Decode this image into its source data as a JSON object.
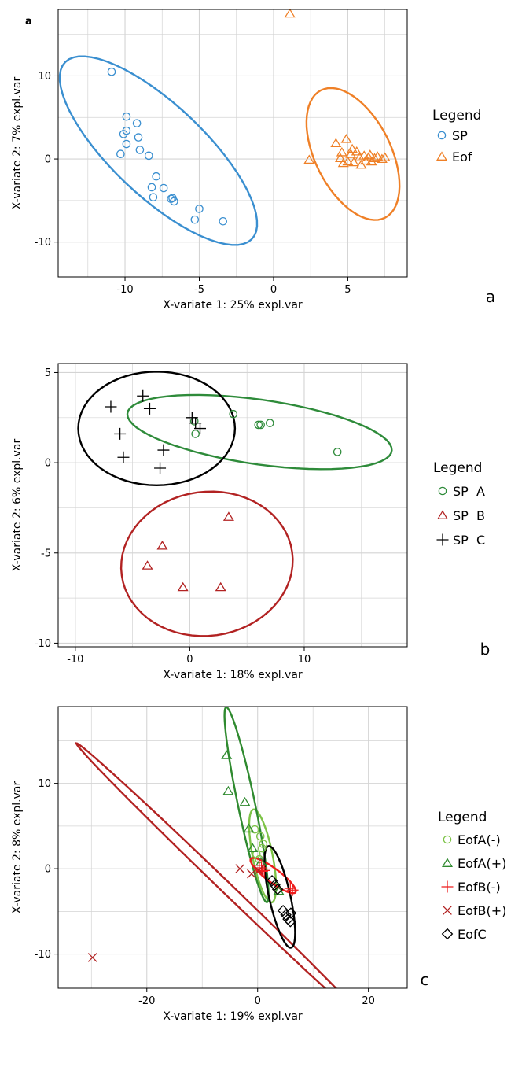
{
  "colors": {
    "sp": "#3a8fd0",
    "eof": "#ef8027",
    "spA": "#2e8b3a",
    "spB": "#b22222",
    "spC": "#000000",
    "eofA_minus": "#7dc347",
    "eofA_plus": "#2f8a2f",
    "eofB_minus": "#ee1c1c",
    "eofB_plus": "#b22222",
    "eofC": "#000000",
    "grid": "#d4d4d4",
    "frame": "#000000"
  },
  "chart_data": [
    {
      "id": "a",
      "type": "scatter",
      "corner_label": "a",
      "panel_letter": "a",
      "xlabel": "X-variate 1: 25% expl.var",
      "ylabel": "X-variate 2: 7% expl.var",
      "xlim": [
        -14.5,
        9
      ],
      "ylim": [
        -14.2,
        18
      ],
      "xticks": [
        -10,
        -5,
        0,
        5
      ],
      "yticks": [
        -10,
        0,
        10
      ],
      "grid": true,
      "legend": {
        "title": "Legend",
        "placement": "right",
        "items": [
          {
            "label": "SP",
            "shape": "circle",
            "color": "#3a8fd0"
          },
          {
            "label": "Eof",
            "shape": "triangle",
            "color": "#ef8027"
          }
        ]
      },
      "series": [
        {
          "name": "SP",
          "shape": "circle",
          "color": "#3a8fd0",
          "points": [
            [
              -10.9,
              10.5
            ],
            [
              -9.9,
              5.1
            ],
            [
              -9.9,
              3.4
            ],
            [
              -10.1,
              3.0
            ],
            [
              -9.9,
              1.8
            ],
            [
              -9.2,
              4.3
            ],
            [
              -9.1,
              2.6
            ],
            [
              -9.0,
              1.1
            ],
            [
              -10.3,
              0.6
            ],
            [
              -8.4,
              0.4
            ],
            [
              -7.9,
              -2.1
            ],
            [
              -8.2,
              -3.4
            ],
            [
              -7.4,
              -3.5
            ],
            [
              -8.1,
              -4.6
            ],
            [
              -6.9,
              -4.8
            ],
            [
              -6.8,
              -4.7
            ],
            [
              -6.7,
              -5.1
            ],
            [
              -5.0,
              -6.0
            ],
            [
              -5.3,
              -7.3
            ],
            [
              -3.4,
              -7.5
            ]
          ],
          "ellipse": {
            "center": [
              -7.75,
              1.0
            ],
            "rx": 12.6,
            "ry": 3.8,
            "angle_deg": -63
          }
        },
        {
          "name": "Eof",
          "shape": "triangle",
          "color": "#ef8027",
          "points": [
            [
              1.1,
              17.5
            ],
            [
              2.4,
              -0.1
            ],
            [
              4.2,
              1.9
            ],
            [
              4.6,
              0.8
            ],
            [
              4.9,
              2.4
            ],
            [
              4.5,
              0.1
            ],
            [
              5.0,
              -0.3
            ],
            [
              5.2,
              0.6
            ],
            [
              5.4,
              -0.4
            ],
            [
              5.6,
              0.9
            ],
            [
              5.8,
              0.2
            ],
            [
              5.9,
              -0.7
            ],
            [
              6.1,
              0.4
            ],
            [
              6.2,
              -0.2
            ],
            [
              6.4,
              0.2
            ],
            [
              6.5,
              0.5
            ],
            [
              6.6,
              -0.3
            ],
            [
              6.8,
              0.1
            ],
            [
              7.0,
              0.3
            ],
            [
              7.3,
              0.0
            ],
            [
              7.5,
              0.2
            ],
            [
              4.7,
              -0.5
            ],
            [
              5.3,
              1.2
            ]
          ],
          "ellipse": {
            "center": [
              5.35,
              0.6
            ],
            "rx": 8.1,
            "ry": 2.7,
            "angle_deg": -78
          }
        }
      ]
    },
    {
      "id": "b",
      "type": "scatter",
      "corner_label": "",
      "panel_letter": "b",
      "xlabel": "X-variate 1: 18% expl.var",
      "ylabel": "X-variate 2: 6% expl.var",
      "xlim": [
        -11.5,
        19
      ],
      "ylim": [
        -10.2,
        5.5
      ],
      "xticks": [
        -10,
        0,
        10
      ],
      "yticks": [
        -10,
        -5,
        0,
        5
      ],
      "grid": true,
      "legend": {
        "title": "Legend",
        "placement": "right",
        "items": [
          {
            "label": "SP  A",
            "shape": "circle",
            "color": "#2e8b3a"
          },
          {
            "label": "SP  B",
            "shape": "triangle",
            "color": "#b22222"
          },
          {
            "label": "SP  C",
            "shape": "plus",
            "color": "#000000"
          }
        ]
      },
      "series": [
        {
          "name": "SP  A",
          "shape": "circle",
          "color": "#2e8b3a",
          "points": [
            [
              0.5,
              1.6
            ],
            [
              3.8,
              2.7
            ],
            [
              6.0,
              2.1
            ],
            [
              6.2,
              2.1
            ],
            [
              7.0,
              2.2
            ],
            [
              12.9,
              0.6
            ],
            [
              0.4,
              2.3
            ]
          ],
          "ellipse": {
            "center": [
              6.1,
              1.7
            ],
            "rx": 11.6,
            "ry": 1.8,
            "angle_deg": -5
          }
        },
        {
          "name": "SP  B",
          "shape": "triangle",
          "color": "#b22222",
          "points": [
            [
              3.4,
              -3.0
            ],
            [
              -2.4,
              -4.6
            ],
            [
              -3.7,
              -5.7
            ],
            [
              -0.6,
              -6.9
            ],
            [
              2.7,
              -6.9
            ]
          ],
          "ellipse": {
            "center": [
              1.5,
              -5.6
            ],
            "rx": 7.5,
            "ry": 4.0,
            "angle_deg": 2
          }
        },
        {
          "name": "SP  C",
          "shape": "plus",
          "color": "#000000",
          "points": [
            [
              -6.9,
              3.1
            ],
            [
              -4.1,
              3.7
            ],
            [
              -3.5,
              3.0
            ],
            [
              -6.1,
              1.6
            ],
            [
              0.2,
              2.5
            ],
            [
              0.5,
              2.2
            ],
            [
              0.9,
              1.9
            ],
            [
              -5.8,
              0.3
            ],
            [
              -2.3,
              0.7
            ],
            [
              -2.6,
              -0.3
            ]
          ],
          "ellipse": {
            "center": [
              -2.9,
              1.9
            ],
            "rx": 6.85,
            "ry": 3.15,
            "angle_deg": 0
          }
        }
      ]
    },
    {
      "id": "c",
      "type": "scatter",
      "corner_label": "",
      "panel_letter": "c",
      "xlabel": "X-variate 1: 19% expl.var",
      "ylabel": "X-variate 2: 8% expl.var",
      "xlim": [
        -36,
        27
      ],
      "ylim": [
        -14,
        19
      ],
      "xticks": [
        -20,
        0,
        20
      ],
      "yticks": [
        -10,
        0,
        10
      ],
      "grid": true,
      "legend": {
        "title": "Legend",
        "placement": "right",
        "items": [
          {
            "label": "EofA(-)",
            "shape": "circle",
            "color": "#7dc347"
          },
          {
            "label": "EofA(+)",
            "shape": "triangle",
            "color": "#2f8a2f"
          },
          {
            "label": "EofB(-)",
            "shape": "plus",
            "color": "#ee1c1c"
          },
          {
            "label": "EofB(+)",
            "shape": "cross",
            "color": "#b22222"
          },
          {
            "label": "EofC",
            "shape": "diamond",
            "color": "#000000"
          }
        ]
      },
      "series": [
        {
          "name": "EofA(-)",
          "shape": "circle",
          "color": "#7dc347",
          "points": [
            [
              -0.5,
              4.6
            ],
            [
              0.5,
              3.8
            ],
            [
              1.0,
              2.9
            ],
            [
              0.8,
              2.4
            ],
            [
              -0.2,
              1.7
            ],
            [
              0.3,
              1.1
            ]
          ],
          "ellipse": {
            "center": [
              0.9,
              1.5
            ],
            "rx": 5.7,
            "ry": 1.75,
            "angle_deg": -72
          }
        },
        {
          "name": "EofA(+)",
          "shape": "triangle",
          "color": "#2f8a2f",
          "points": [
            [
              -5.6,
              13.3
            ],
            [
              -5.3,
              9.1
            ],
            [
              -2.3,
              7.8
            ],
            [
              -1.6,
              4.7
            ],
            [
              -0.9,
              2.4
            ],
            [
              0.6,
              0.8
            ],
            [
              3.8,
              -2.6
            ]
          ],
          "ellipse": {
            "center": [
              -2.0,
              7.5
            ],
            "rx": 12.0,
            "ry": 1.5,
            "angle_deg": -72
          }
        },
        {
          "name": "EofB(-)",
          "shape": "plus",
          "color": "#ee1c1c",
          "points": [
            [
              0.3,
              0.4
            ],
            [
              0.7,
              0.1
            ],
            [
              1.2,
              -0.2
            ],
            [
              5.9,
              -2.3
            ],
            [
              6.3,
              -2.5
            ],
            [
              0.8,
              -0.3
            ]
          ],
          "ellipse": {
            "center": [
              2.8,
              -0.8
            ],
            "rx": 4.5,
            "ry": 0.9,
            "angle_deg": -25
          }
        },
        {
          "name": "EofB(+)",
          "shape": "cross",
          "color": "#b22222",
          "points": [
            [
              -29.8,
              -10.4
            ],
            [
              -3.2,
              0.0
            ],
            [
              -1.1,
              -0.6
            ],
            [
              0.2,
              -0.2
            ]
          ],
          "ellipse": {
            "center": [
              -6.0,
              -2.0
            ],
            "rx": 31.5,
            "ry": 0.75,
            "angle_deg": -32
          }
        },
        {
          "name": "EofC",
          "shape": "diamond",
          "color": "#000000",
          "points": [
            [
              2.6,
              -1.4
            ],
            [
              3.1,
              -1.9
            ],
            [
              3.6,
              -2.4
            ],
            [
              4.6,
              -4.9
            ],
            [
              5.1,
              -5.4
            ],
            [
              5.5,
              -5.9
            ],
            [
              5.9,
              -6.2
            ],
            [
              6.0,
              -5.2
            ]
          ],
          "ellipse": {
            "center": [
              4.0,
              -3.3
            ],
            "rx": 6.3,
            "ry": 1.85,
            "angle_deg": -70
          }
        }
      ]
    }
  ]
}
